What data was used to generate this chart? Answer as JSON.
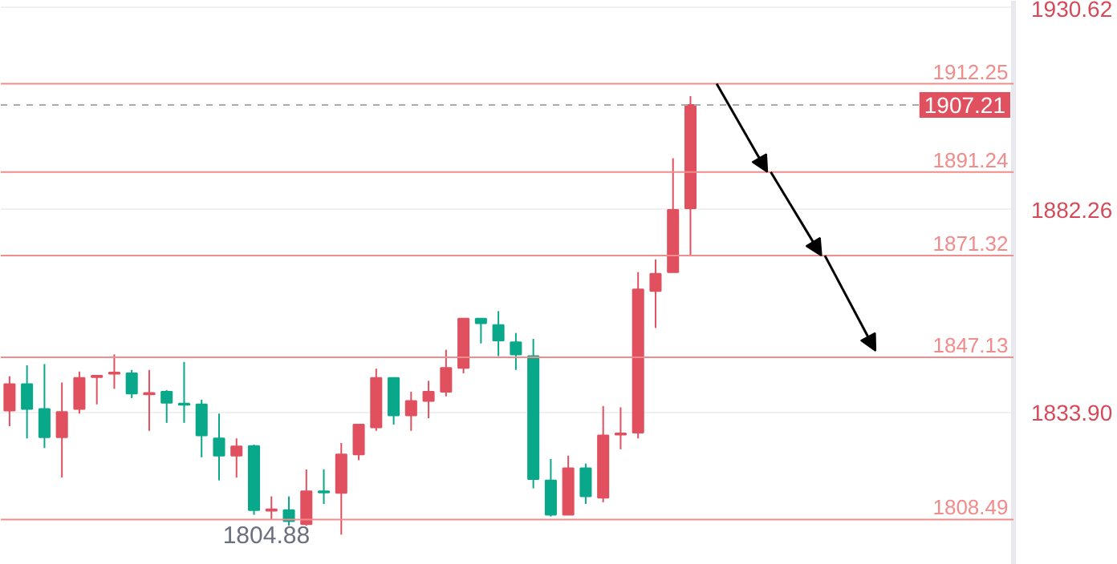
{
  "chart_data": {
    "type": "candlestick",
    "categories": [
      null,
      null,
      null,
      null,
      null,
      null,
      null,
      null,
      null,
      null,
      null,
      null,
      null,
      null,
      null,
      null,
      null,
      null,
      null,
      null,
      null,
      null,
      null,
      null,
      null,
      null,
      null,
      null,
      null,
      null,
      null,
      null,
      null,
      null,
      null,
      null,
      null,
      null,
      null,
      null,
      null,
      null,
      null,
      null,
      null,
      null,
      null,
      null,
      null,
      null,
      null,
      null,
      null,
      null,
      null,
      null,
      null,
      null
    ],
    "ohlc": [
      [
        1834.4,
        1842.6,
        1830.7,
        1840.7
      ],
      [
        1840.7,
        1845.2,
        1827.8,
        1834.8
      ],
      [
        1834.8,
        1845.5,
        1825.5,
        1828.1
      ],
      [
        1828.1,
        1841.1,
        1818.5,
        1834.1
      ],
      [
        1834.8,
        1843.7,
        1833.7,
        1842.2
      ],
      [
        1842.4,
        1842.8,
        1835.9,
        1842.7
      ],
      [
        1843.2,
        1847.8,
        1839.6,
        1843.5
      ],
      [
        1843.3,
        1844.1,
        1837.4,
        1838.5
      ],
      [
        1838.3,
        1844.1,
        1829.6,
        1838.6
      ],
      [
        1838.9,
        1839.3,
        1831.5,
        1836.3
      ],
      [
        1836.1,
        1846.0,
        1831.5,
        1835.8
      ],
      [
        1835.9,
        1837.0,
        1823.3,
        1828.5
      ],
      [
        1827.8,
        1833.7,
        1817.8,
        1823.7
      ],
      [
        1823.7,
        1827.8,
        1818.5,
        1825.9
      ],
      [
        1826.0,
        1826.3,
        1809.6,
        1810.7
      ],
      [
        1810.6,
        1814.0,
        1808.5,
        1810.9
      ],
      [
        1810.7,
        1814.0,
        1807.0,
        1808.1
      ],
      [
        1807.4,
        1820.4,
        1807.0,
        1815.2
      ],
      [
        1815.2,
        1820.4,
        1812.2,
        1814.9
      ],
      [
        1814.8,
        1826.7,
        1804.88,
        1824.0
      ],
      [
        1824.0,
        1831.1,
        1822.6,
        1831.1
      ],
      [
        1830.4,
        1844.4,
        1829.6,
        1842.2
      ],
      [
        1842.2,
        1842.2,
        1831.1,
        1833.3
      ],
      [
        1833.3,
        1838.9,
        1829.6,
        1836.7
      ],
      [
        1836.7,
        1841.5,
        1832.6,
        1838.9
      ],
      [
        1838.9,
        1848.9,
        1837.8,
        1844.6
      ],
      [
        1844.6,
        1856.3,
        1843.3,
        1856.3
      ],
      [
        1856.3,
        1856.3,
        1850.4,
        1855.2
      ],
      [
        1854.8,
        1858.1,
        1847.4,
        1851.1
      ],
      [
        1850.7,
        1852.9,
        1844.1,
        1847.8
      ],
      [
        1847.4,
        1851.5,
        1815.9,
        1818.1
      ],
      [
        1817.8,
        1822.9,
        1809.2,
        1809.6
      ],
      [
        1809.6,
        1823.7,
        1809.6,
        1820.7
      ],
      [
        1820.7,
        1821.8,
        1812.2,
        1814.0
      ],
      [
        1813.7,
        1835.5,
        1812.6,
        1828.5
      ],
      [
        1828.7,
        1835.2,
        1825.2,
        1829.0
      ],
      [
        1829.2,
        1867.4,
        1827.8,
        1863.3
      ],
      [
        1862.9,
        1870.4,
        1854.1,
        1867.0
      ],
      [
        1867.4,
        1894.5,
        1867.4,
        1882.2
      ],
      [
        1882.6,
        1909.3,
        1871.5,
        1907.21
      ],
      null,
      null,
      null,
      null,
      null,
      null,
      null,
      null,
      null,
      null,
      null,
      null,
      null,
      null,
      null,
      null,
      null,
      null
    ],
    "colors": [
      "#e0505f",
      "#0aa88a",
      "#0aa88a",
      "#e0505f",
      "#e0505f",
      "#e0505f",
      "#e0505f",
      "#0aa88a",
      "#e0505f",
      "#0aa88a",
      "#0aa88a",
      "#0aa88a",
      "#0aa88a",
      "#e0505f",
      "#0aa88a",
      "#e0505f",
      "#0aa88a",
      "#e0505f",
      "#0aa88a",
      "#e0505f",
      "#e0505f",
      "#e0505f",
      "#0aa88a",
      "#e0505f",
      "#e0505f",
      "#e0505f",
      "#e0505f",
      "#0aa88a",
      "#0aa88a",
      "#0aa88a",
      "#0aa88a",
      "#0aa88a",
      "#e0505f",
      "#0aa88a",
      "#e0505f",
      "#e0505f",
      "#e0505f",
      "#e0505f",
      "#e0505f",
      "#e0505f",
      null,
      null,
      null,
      null,
      null,
      null,
      null,
      null,
      null,
      null,
      null,
      null,
      null,
      null,
      null,
      null,
      null,
      null
    ],
    "ylim": [
      1797.7,
      1932
    ],
    "yticks": [
      {
        "value": 1833.9,
        "label": "1833.90"
      },
      1882.26,
      1930.62
    ],
    "grid": "y",
    "ref_lines": [
      {
        "axis": "y",
        "value": 1912.25,
        "label": "1912.25",
        "color": "#f28b8b"
      },
      {
        "axis": "y",
        "value": 1891.24,
        "label": "1891.24",
        "color": "#f28b8b"
      },
      {
        "axis": "y",
        "value": 1871.32,
        "label": "1871.32",
        "color": "#f28b8b"
      },
      {
        "axis": "y",
        "value": 1847.13,
        "label": "1847.13",
        "color": "#f28b8b"
      },
      {
        "axis": "y",
        "value": 1808.49,
        "label": "1808.49",
        "color": "#f28b8b"
      },
      {
        "axis": "y",
        "value": 1907.21,
        "label": "1907.21",
        "color": "#aaaaaa",
        "line_style": "dashed"
      }
    ],
    "annotations": [
      "1804.88"
    ]
  }
}
